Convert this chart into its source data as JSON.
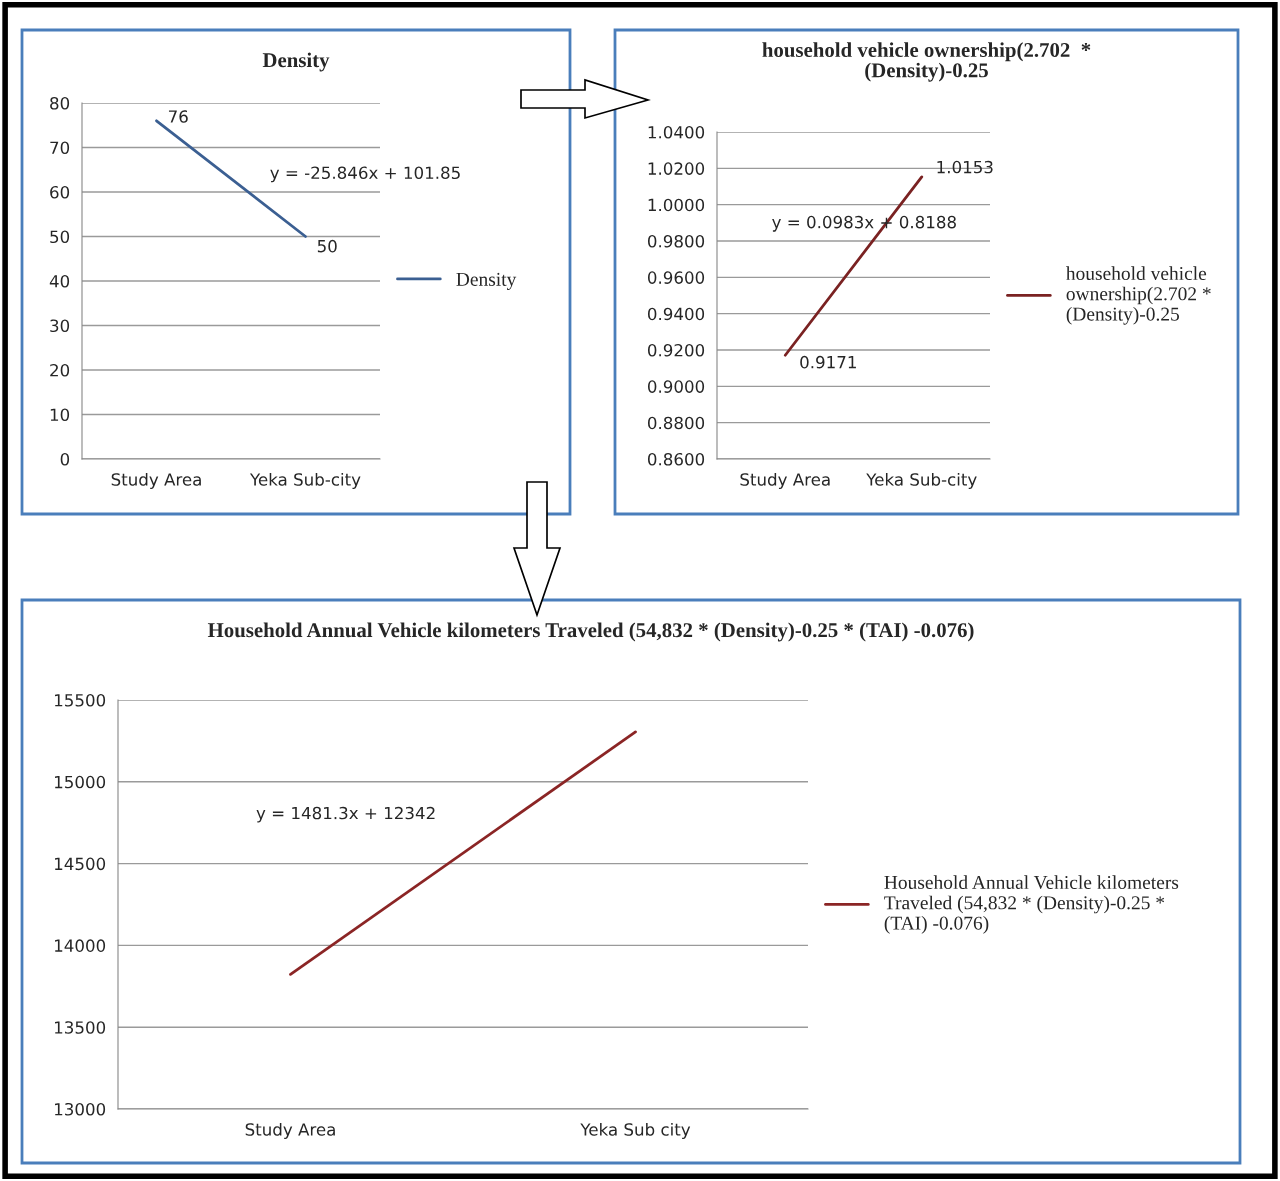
{
  "chart_data": [
    {
      "type": "line",
      "title": "Density",
      "categories": [
        "Study Area",
        "Yeka Sub-city"
      ],
      "series": [
        {
          "name": "Density",
          "color": "#3b5f92",
          "values": [
            76,
            50
          ]
        }
      ],
      "ylim": [
        0,
        80
      ],
      "yticks": [
        0,
        10,
        20,
        30,
        40,
        50,
        60,
        70,
        80
      ],
      "grid": "y",
      "legend": "right",
      "data_labels": true,
      "marker": "none",
      "line_style": "solid",
      "annotations": [
        "y = -25.846x + 101.85"
      ]
    },
    {
      "type": "line",
      "title": "household vehicle ownership(2.702  * (Density)-0.25",
      "categories": [
        "Study Area",
        "Yeka Sub-city"
      ],
      "series": [
        {
          "name": "household vehicle ownership(2.702 * (Density)-0.25",
          "color": "#7a2222",
          "values": [
            0.9171,
            1.0153
          ]
        }
      ],
      "ylim": [
        0.86,
        1.04
      ],
      "yticks": [
        {
          "value": 0.86,
          "label": "0.8600"
        },
        {
          "value": 0.88,
          "label": "0.8800"
        },
        {
          "value": 0.9,
          "label": "0.9000"
        },
        {
          "value": 0.92,
          "label": "0.9200"
        },
        {
          "value": 0.94,
          "label": "0.9400"
        },
        {
          "value": 0.96,
          "label": "0.9600"
        },
        {
          "value": 0.98,
          "label": "0.9800"
        },
        {
          "value": 1.0,
          "label": "1.0000"
        },
        {
          "value": 1.02,
          "label": "1.0200"
        },
        {
          "value": 1.04,
          "label": "1.0400"
        }
      ],
      "grid": "y",
      "legend": "right",
      "data_labels": true,
      "marker": "none",
      "line_style": "solid",
      "annotations": [
        "y = 0.0983x + 0.8188"
      ]
    },
    {
      "type": "line",
      "title": "Household Annual Vehicle kilometers Traveled (54,832 * (Density)-0.25 * (TAI) -0.076)",
      "categories": [
        "Study Area",
        "Yeka Sub city"
      ],
      "series": [
        {
          "name": "Household Annual Vehicle kilometers Traveled (54,832 * (Density)-0.25 * (TAI) -0.076)",
          "color": "#8b2525",
          "values": [
            13823,
            15305
          ]
        }
      ],
      "ylim": [
        13000,
        15500
      ],
      "yticks": [
        13000,
        13500,
        14000,
        14500,
        15000,
        15500
      ],
      "grid": "y",
      "legend": "right",
      "marker": "none",
      "line_style": "solid",
      "annotations": [
        "y = 1481.3x + 12342"
      ]
    }
  ]
}
